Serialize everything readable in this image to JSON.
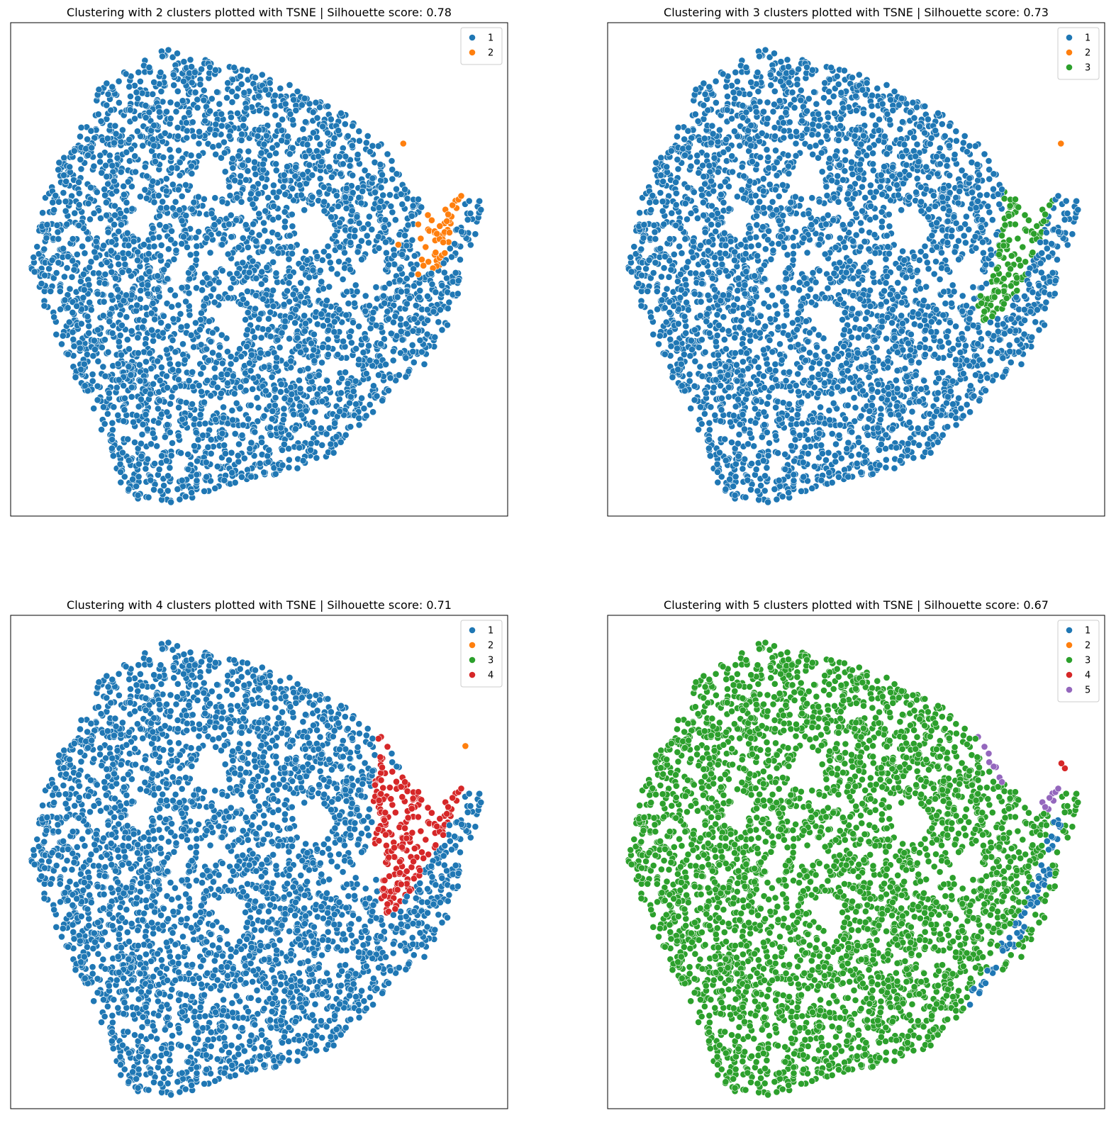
{
  "colors": {
    "1": "#1f77b4",
    "2": "#ff7f0e",
    "3": "#2ca02c",
    "4": "#d62728",
    "5": "#9467bd"
  },
  "chart_data": [
    {
      "type": "scatter",
      "title": "Clustering with 2 clusters plotted with TSNE | Silhouette score: 0.78",
      "xlabel": "",
      "ylabel": "",
      "legend": [
        "1",
        "2"
      ],
      "legend_position": "top-right",
      "grid": false,
      "ticks": false,
      "xlim": [
        0,
        100
      ],
      "ylim": [
        0,
        100
      ],
      "regions": [
        {
          "label": "2",
          "polygon": [
            [
              82,
              60
            ],
            [
              85,
              68
            ],
            [
              89,
              75
            ],
            [
              92,
              75
            ],
            [
              92,
              68
            ],
            [
              88,
              54
            ],
            [
              86,
              50
            ],
            [
              84,
              49
            ],
            [
              82,
              52
            ]
          ]
        }
      ],
      "outliers": [
        {
          "label": "2",
          "x": 79,
          "y": 75.5
        },
        {
          "label": "2",
          "x": 78,
          "y": 55
        },
        {
          "label": "2",
          "x": 82,
          "y": 49
        }
      ]
    },
    {
      "type": "scatter",
      "title": "Clustering with 3 clusters plotted with TSNE | Silhouette score: 0.73",
      "xlabel": "",
      "ylabel": "",
      "legend": [
        "1",
        "2",
        "3"
      ],
      "legend_position": "top-right",
      "grid": false,
      "ticks": false,
      "xlim": [
        0,
        100
      ],
      "ylim": [
        0,
        100
      ],
      "regions": [
        {
          "label": "3",
          "polygon": [
            [
              79,
              70
            ],
            [
              80,
              62
            ],
            [
              78,
              50
            ],
            [
              75,
              45
            ],
            [
              74,
              40
            ],
            [
              76,
              39
            ],
            [
              80,
              42
            ],
            [
              84,
              48
            ],
            [
              87,
              56
            ],
            [
              90,
              65
            ],
            [
              91,
              74
            ],
            [
              89,
              75
            ],
            [
              85,
              69
            ],
            [
              82,
              68
            ]
          ]
        }
      ],
      "outliers": [
        {
          "label": "2",
          "x": 91.2,
          "y": 75.5
        }
      ]
    },
    {
      "type": "scatter",
      "title": "Clustering with 4 clusters plotted with TSNE | Silhouette score: 0.71",
      "xlabel": "",
      "ylabel": "",
      "legend": [
        "1",
        "2",
        "3",
        "4"
      ],
      "legend_position": "top-right",
      "grid": false,
      "ticks": false,
      "xlim": [
        0,
        100
      ],
      "ylim": [
        0,
        100
      ],
      "regions": [
        {
          "label": "4",
          "polygon": [
            [
              73,
              65
            ],
            [
              74,
              77
            ],
            [
              76,
              77
            ],
            [
              77,
              68
            ],
            [
              84,
              67
            ],
            [
              90,
              73
            ],
            [
              92,
              72
            ],
            [
              91,
              63
            ],
            [
              87,
              55
            ],
            [
              83,
              48
            ],
            [
              79,
              42
            ],
            [
              76,
              38
            ],
            [
              74,
              40
            ],
            [
              74,
              48
            ],
            [
              73,
              56
            ]
          ]
        }
      ],
      "outliers": [
        {
          "label": "2",
          "x": 91.5,
          "y": 73.5
        }
      ]
    },
    {
      "type": "scatter",
      "title": "Clustering with 5 clusters plotted with TSNE | Silhouette score: 0.67",
      "xlabel": "",
      "ylabel": "",
      "legend": [
        "1",
        "2",
        "3",
        "4",
        "5"
      ],
      "legend_position": "top-right",
      "grid": false,
      "ticks": false,
      "xlim": [
        0,
        100
      ],
      "ylim": [
        0,
        100
      ],
      "regions": [
        {
          "label": "5",
          "polygon": [
            [
              68,
              84
            ],
            [
              74,
              82
            ],
            [
              77,
              76
            ],
            [
              79,
              69
            ],
            [
              83,
              64
            ],
            [
              88,
              60
            ],
            [
              90,
              61
            ],
            [
              92,
              66
            ],
            [
              92,
              69
            ],
            [
              89,
              70
            ],
            [
              84,
              67
            ],
            [
              79,
              66
            ],
            [
              76,
              70
            ],
            [
              74,
              77
            ],
            [
              71,
              82
            ]
          ]
        },
        {
          "label": "1",
          "polygon": [
            [
              90,
              59
            ],
            [
              92,
              63
            ],
            [
              91,
              56
            ],
            [
              89,
              47
            ],
            [
              86,
              40
            ],
            [
              82,
              33
            ],
            [
              78,
              26
            ],
            [
              74,
              20
            ],
            [
              72,
              22
            ],
            [
              76,
              28
            ],
            [
              80,
              35
            ],
            [
              84,
              42
            ],
            [
              87,
              50
            ]
          ]
        }
      ],
      "outliers": [
        {
          "label": "4",
          "x": 92,
          "y": 69
        },
        {
          "label": "4",
          "x": 91.3,
          "y": 70
        }
      ]
    }
  ]
}
